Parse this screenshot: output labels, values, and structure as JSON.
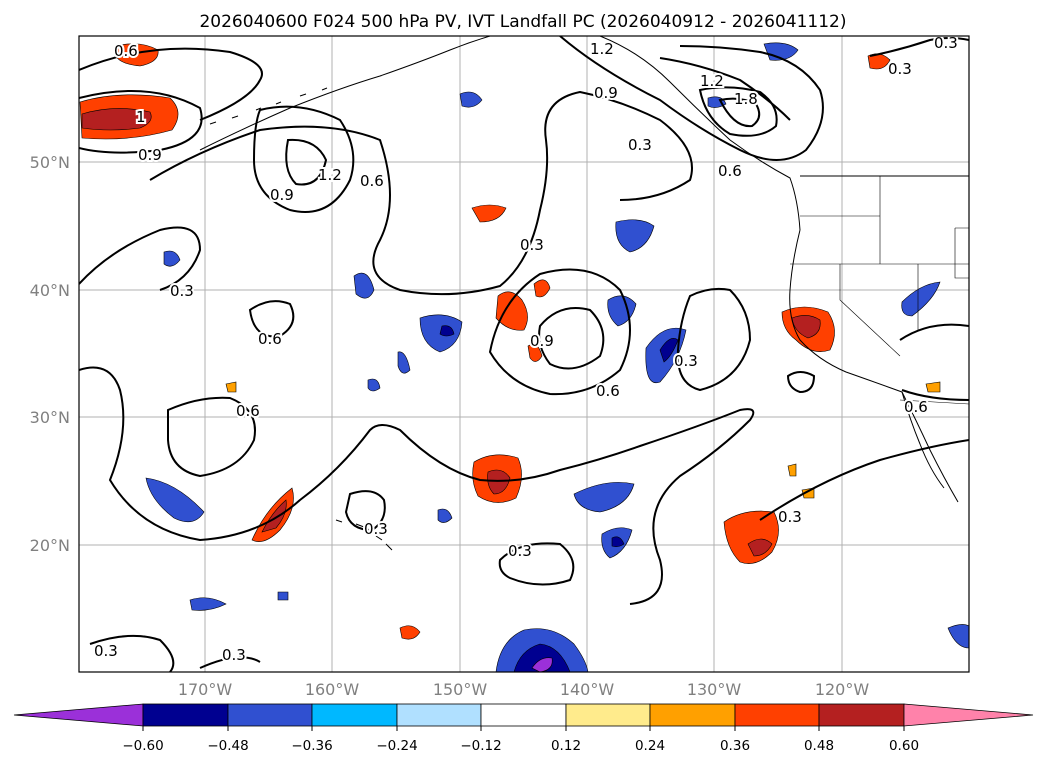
{
  "title": "2026040600 F024 500 hPa PV, IVT Landfall PC (2026040912 - 2026041112)",
  "map": {
    "lat_ticks": [
      "50°N",
      "40°N",
      "30°N",
      "20°N"
    ],
    "lon_ticks": [
      "170°W",
      "160°W",
      "150°W",
      "140°W",
      "130°W",
      "120°W"
    ],
    "contour_labels": {
      "c1": "0.6",
      "c2": "1.2",
      "c3": "1.8",
      "c4": "0.3",
      "c5": "1",
      "c6": "0.9",
      "c7": "1.2",
      "c8": "0.9",
      "c9": "0.6",
      "c10": "0.3",
      "c11": "0.9",
      "c12": "0.3",
      "c13": "0.6",
      "c14": "0.9",
      "c15": "0.3",
      "c16": "0.3",
      "c17": "0.6",
      "c18": "0.6",
      "c19": "0.6",
      "c20": "0.3",
      "c21": "0.3",
      "c22": "0.3",
      "c23": "0.3",
      "c24": "0.3",
      "c25": "0.3",
      "c26": "0.6",
      "c27": "1.2"
    }
  },
  "colorbar": {
    "ticks": [
      "−0.60",
      "−0.48",
      "−0.36",
      "−0.24",
      "−0.12",
      "0.12",
      "0.24",
      "0.36",
      "0.48",
      "0.60"
    ],
    "colors": {
      "under": "#9b30d9",
      "b1": "#000090",
      "b2": "#3050d0",
      "b3": "#00b8ff",
      "b4": "#b0e0ff",
      "b5": "#ffffff",
      "b6": "#ffeb8c",
      "b7": "#ffa000",
      "b8": "#ff4000",
      "b9": "#b42020",
      "over": "#ff82aa"
    }
  }
}
